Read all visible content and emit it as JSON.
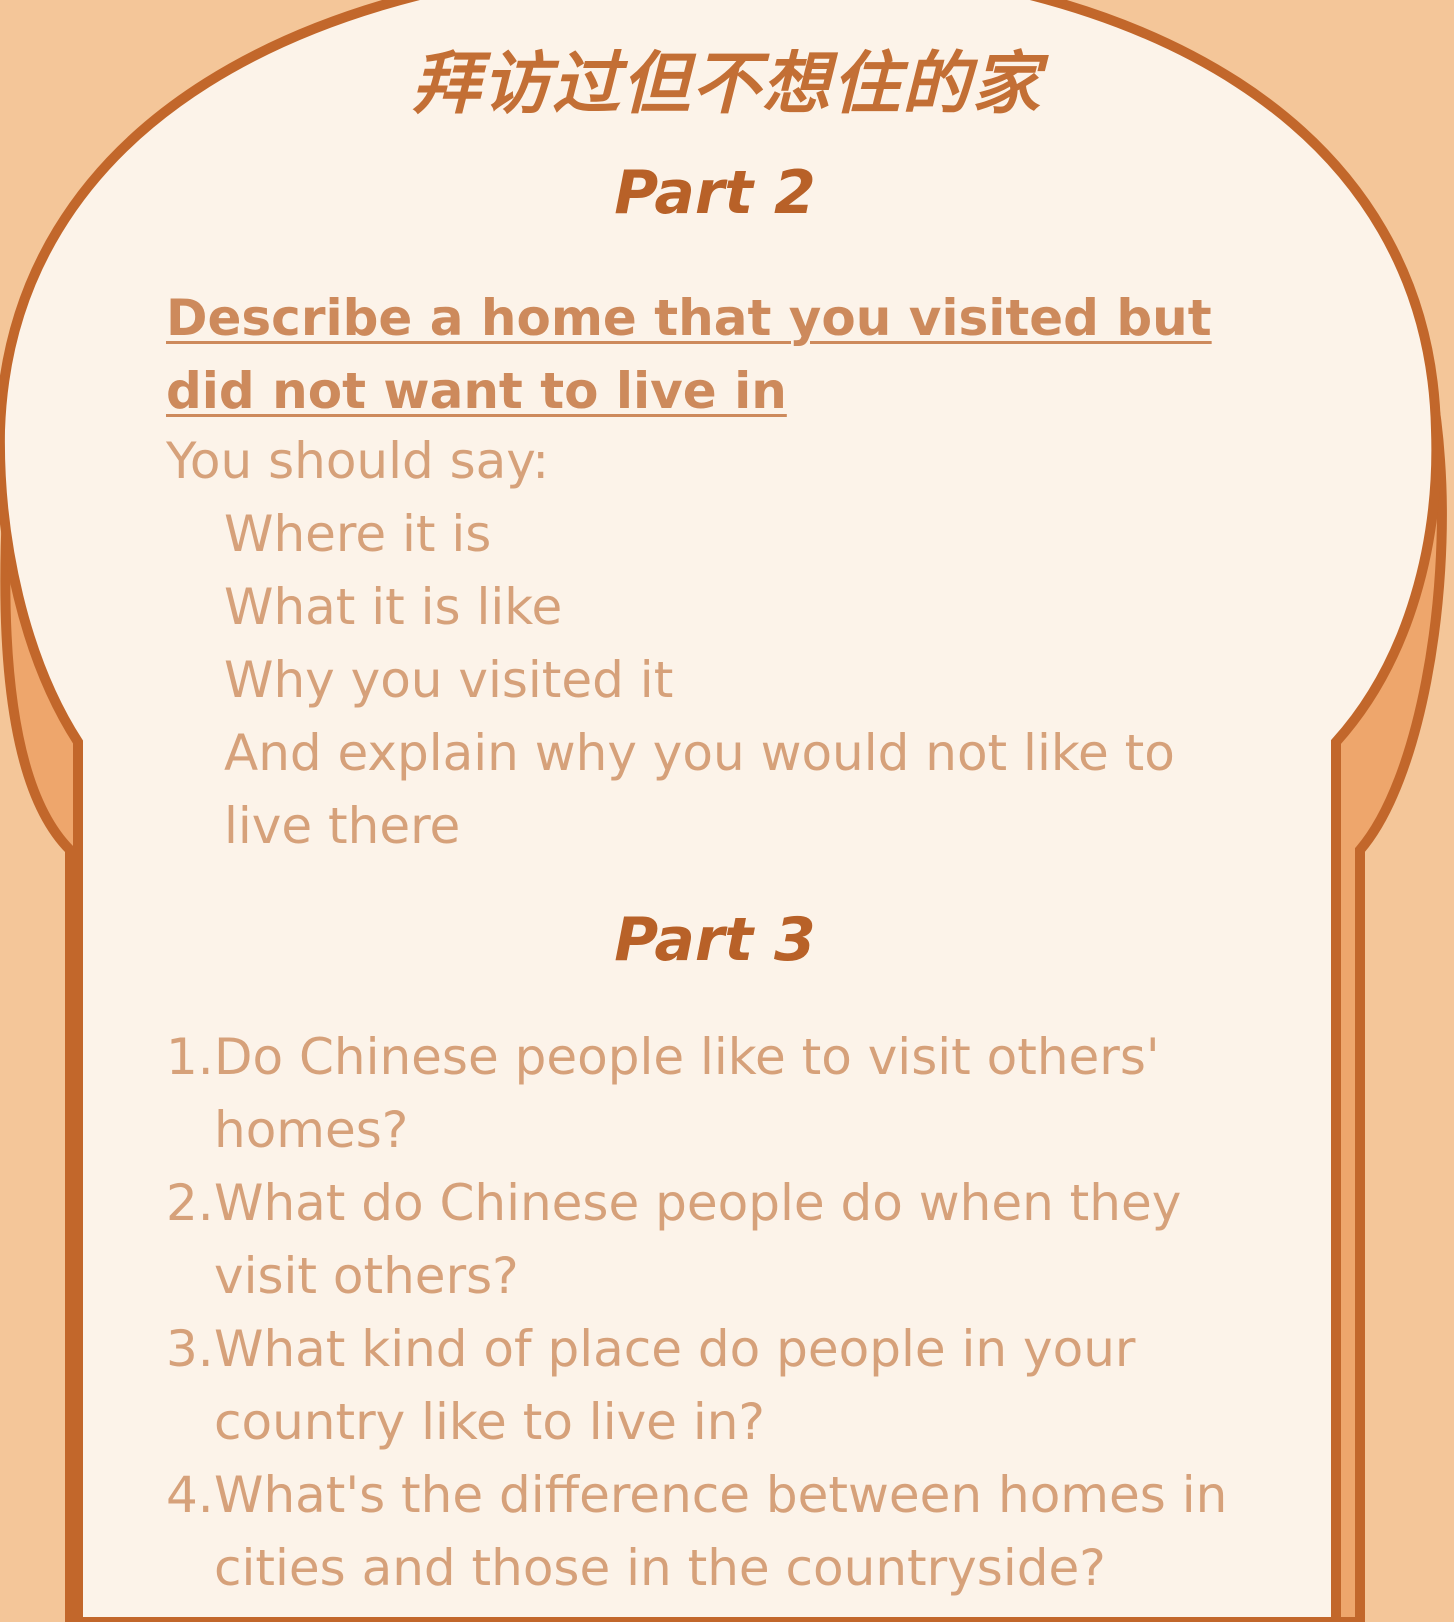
{
  "title": "拜访过但不想住的家",
  "part2": {
    "heading": "Part 2",
    "topic": "Describe a home that you visited but did not want to live in",
    "you_should_say": "You should say:",
    "prompts": [
      "Where it is",
      "What it is like",
      "Why you visited it",
      "And explain why you would not like to live there"
    ]
  },
  "part3": {
    "heading": "Part 3",
    "questions": [
      {
        "num": "1.",
        "text": "Do Chinese people like to visit others' homes?"
      },
      {
        "num": "2.",
        "text": "What do Chinese people do when they visit others?"
      },
      {
        "num": "3.",
        "text": "What kind of place do people in your country like to live in?"
      },
      {
        "num": "4.",
        "text": "What's the difference between homes in cities and those in the countryside?"
      }
    ]
  },
  "colors": {
    "background": "#f4c699",
    "card": "#fcf3e9",
    "outline": "#c2672b",
    "shadow": "#eea66c",
    "heading": "#b86128",
    "topic": "#cd8a5c",
    "body_text": "#d6a17a"
  }
}
